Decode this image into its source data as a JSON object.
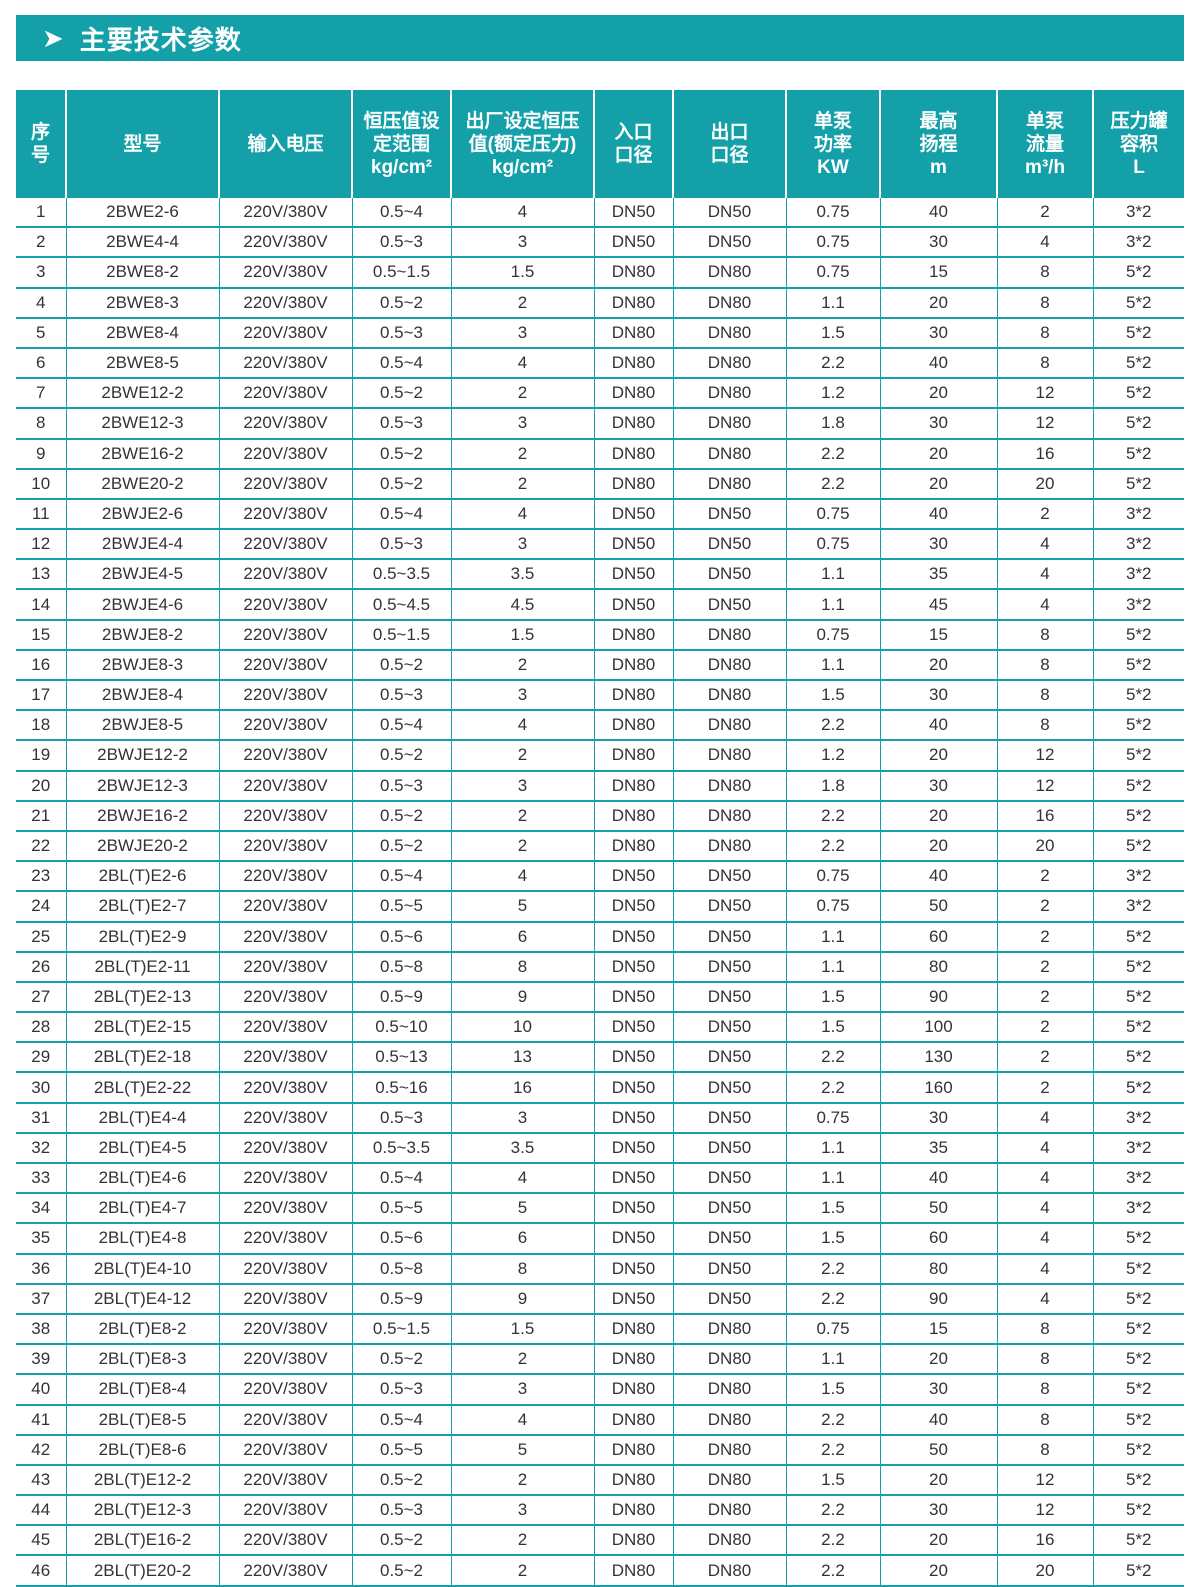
{
  "section": {
    "title": "主要技术参数",
    "icon": "chevron-right-icon"
  },
  "accent_color": "#14a0a8",
  "table": {
    "headers": [
      [
        "序",
        "号"
      ],
      [
        "型号"
      ],
      [
        "输入电压"
      ],
      [
        "恒压值设",
        "定范围",
        "kg/cm²"
      ],
      [
        "出厂设定恒压",
        "值(额定压力)",
        "kg/cm²"
      ],
      [
        "入口",
        "口径"
      ],
      [
        "出口",
        "口径"
      ],
      [
        "单泵",
        "功率",
        "KW"
      ],
      [
        "最高",
        "扬程",
        "m"
      ],
      [
        "单泵",
        "流量",
        "m³/h"
      ],
      [
        "压力罐",
        "容积",
        "L"
      ]
    ],
    "rows": [
      [
        "1",
        "2BWE2-6",
        "220V/380V",
        "0.5~4",
        "4",
        "DN50",
        "DN50",
        "0.75",
        "40",
        "2",
        "3*2"
      ],
      [
        "2",
        "2BWE4-4",
        "220V/380V",
        "0.5~3",
        "3",
        "DN50",
        "DN50",
        "0.75",
        "30",
        "4",
        "3*2"
      ],
      [
        "3",
        "2BWE8-2",
        "220V/380V",
        "0.5~1.5",
        "1.5",
        "DN80",
        "DN80",
        "0.75",
        "15",
        "8",
        "5*2"
      ],
      [
        "4",
        "2BWE8-3",
        "220V/380V",
        "0.5~2",
        "2",
        "DN80",
        "DN80",
        "1.1",
        "20",
        "8",
        "5*2"
      ],
      [
        "5",
        "2BWE8-4",
        "220V/380V",
        "0.5~3",
        "3",
        "DN80",
        "DN80",
        "1.5",
        "30",
        "8",
        "5*2"
      ],
      [
        "6",
        "2BWE8-5",
        "220V/380V",
        "0.5~4",
        "4",
        "DN80",
        "DN80",
        "2.2",
        "40",
        "8",
        "5*2"
      ],
      [
        "7",
        "2BWE12-2",
        "220V/380V",
        "0.5~2",
        "2",
        "DN80",
        "DN80",
        "1.2",
        "20",
        "12",
        "5*2"
      ],
      [
        "8",
        "2BWE12-3",
        "220V/380V",
        "0.5~3",
        "3",
        "DN80",
        "DN80",
        "1.8",
        "30",
        "12",
        "5*2"
      ],
      [
        "9",
        "2BWE16-2",
        "220V/380V",
        "0.5~2",
        "2",
        "DN80",
        "DN80",
        "2.2",
        "20",
        "16",
        "5*2"
      ],
      [
        "10",
        "2BWE20-2",
        "220V/380V",
        "0.5~2",
        "2",
        "DN80",
        "DN80",
        "2.2",
        "20",
        "20",
        "5*2"
      ],
      [
        "11",
        "2BWJE2-6",
        "220V/380V",
        "0.5~4",
        "4",
        "DN50",
        "DN50",
        "0.75",
        "40",
        "2",
        "3*2"
      ],
      [
        "12",
        "2BWJE4-4",
        "220V/380V",
        "0.5~3",
        "3",
        "DN50",
        "DN50",
        "0.75",
        "30",
        "4",
        "3*2"
      ],
      [
        "13",
        "2BWJE4-5",
        "220V/380V",
        "0.5~3.5",
        "3.5",
        "DN50",
        "DN50",
        "1.1",
        "35",
        "4",
        "3*2"
      ],
      [
        "14",
        "2BWJE4-6",
        "220V/380V",
        "0.5~4.5",
        "4.5",
        "DN50",
        "DN50",
        "1.1",
        "45",
        "4",
        "3*2"
      ],
      [
        "15",
        "2BWJE8-2",
        "220V/380V",
        "0.5~1.5",
        "1.5",
        "DN80",
        "DN80",
        "0.75",
        "15",
        "8",
        "5*2"
      ],
      [
        "16",
        "2BWJE8-3",
        "220V/380V",
        "0.5~2",
        "2",
        "DN80",
        "DN80",
        "1.1",
        "20",
        "8",
        "5*2"
      ],
      [
        "17",
        "2BWJE8-4",
        "220V/380V",
        "0.5~3",
        "3",
        "DN80",
        "DN80",
        "1.5",
        "30",
        "8",
        "5*2"
      ],
      [
        "18",
        "2BWJE8-5",
        "220V/380V",
        "0.5~4",
        "4",
        "DN80",
        "DN80",
        "2.2",
        "40",
        "8",
        "5*2"
      ],
      [
        "19",
        "2BWJE12-2",
        "220V/380V",
        "0.5~2",
        "2",
        "DN80",
        "DN80",
        "1.2",
        "20",
        "12",
        "5*2"
      ],
      [
        "20",
        "2BWJE12-3",
        "220V/380V",
        "0.5~3",
        "3",
        "DN80",
        "DN80",
        "1.8",
        "30",
        "12",
        "5*2"
      ],
      [
        "21",
        "2BWJE16-2",
        "220V/380V",
        "0.5~2",
        "2",
        "DN80",
        "DN80",
        "2.2",
        "20",
        "16",
        "5*2"
      ],
      [
        "22",
        "2BWJE20-2",
        "220V/380V",
        "0.5~2",
        "2",
        "DN80",
        "DN80",
        "2.2",
        "20",
        "20",
        "5*2"
      ],
      [
        "23",
        "2BL(T)E2-6",
        "220V/380V",
        "0.5~4",
        "4",
        "DN50",
        "DN50",
        "0.75",
        "40",
        "2",
        "3*2"
      ],
      [
        "24",
        "2BL(T)E2-7",
        "220V/380V",
        "0.5~5",
        "5",
        "DN50",
        "DN50",
        "0.75",
        "50",
        "2",
        "3*2"
      ],
      [
        "25",
        "2BL(T)E2-9",
        "220V/380V",
        "0.5~6",
        "6",
        "DN50",
        "DN50",
        "1.1",
        "60",
        "2",
        "5*2"
      ],
      [
        "26",
        "2BL(T)E2-11",
        "220V/380V",
        "0.5~8",
        "8",
        "DN50",
        "DN50",
        "1.1",
        "80",
        "2",
        "5*2"
      ],
      [
        "27",
        "2BL(T)E2-13",
        "220V/380V",
        "0.5~9",
        "9",
        "DN50",
        "DN50",
        "1.5",
        "90",
        "2",
        "5*2"
      ],
      [
        "28",
        "2BL(T)E2-15",
        "220V/380V",
        "0.5~10",
        "10",
        "DN50",
        "DN50",
        "1.5",
        "100",
        "2",
        "5*2"
      ],
      [
        "29",
        "2BL(T)E2-18",
        "220V/380V",
        "0.5~13",
        "13",
        "DN50",
        "DN50",
        "2.2",
        "130",
        "2",
        "5*2"
      ],
      [
        "30",
        "2BL(T)E2-22",
        "220V/380V",
        "0.5~16",
        "16",
        "DN50",
        "DN50",
        "2.2",
        "160",
        "2",
        "5*2"
      ],
      [
        "31",
        "2BL(T)E4-4",
        "220V/380V",
        "0.5~3",
        "3",
        "DN50",
        "DN50",
        "0.75",
        "30",
        "4",
        "3*2"
      ],
      [
        "32",
        "2BL(T)E4-5",
        "220V/380V",
        "0.5~3.5",
        "3.5",
        "DN50",
        "DN50",
        "1.1",
        "35",
        "4",
        "3*2"
      ],
      [
        "33",
        "2BL(T)E4-6",
        "220V/380V",
        "0.5~4",
        "4",
        "DN50",
        "DN50",
        "1.1",
        "40",
        "4",
        "3*2"
      ],
      [
        "34",
        "2BL(T)E4-7",
        "220V/380V",
        "0.5~5",
        "5",
        "DN50",
        "DN50",
        "1.5",
        "50",
        "4",
        "3*2"
      ],
      [
        "35",
        "2BL(T)E4-8",
        "220V/380V",
        "0.5~6",
        "6",
        "DN50",
        "DN50",
        "1.5",
        "60",
        "4",
        "5*2"
      ],
      [
        "36",
        "2BL(T)E4-10",
        "220V/380V",
        "0.5~8",
        "8",
        "DN50",
        "DN50",
        "2.2",
        "80",
        "4",
        "5*2"
      ],
      [
        "37",
        "2BL(T)E4-12",
        "220V/380V",
        "0.5~9",
        "9",
        "DN50",
        "DN50",
        "2.2",
        "90",
        "4",
        "5*2"
      ],
      [
        "38",
        "2BL(T)E8-2",
        "220V/380V",
        "0.5~1.5",
        "1.5",
        "DN80",
        "DN80",
        "0.75",
        "15",
        "8",
        "5*2"
      ],
      [
        "39",
        "2BL(T)E8-3",
        "220V/380V",
        "0.5~2",
        "2",
        "DN80",
        "DN80",
        "1.1",
        "20",
        "8",
        "5*2"
      ],
      [
        "40",
        "2BL(T)E8-4",
        "220V/380V",
        "0.5~3",
        "3",
        "DN80",
        "DN80",
        "1.5",
        "30",
        "8",
        "5*2"
      ],
      [
        "41",
        "2BL(T)E8-5",
        "220V/380V",
        "0.5~4",
        "4",
        "DN80",
        "DN80",
        "2.2",
        "40",
        "8",
        "5*2"
      ],
      [
        "42",
        "2BL(T)E8-6",
        "220V/380V",
        "0.5~5",
        "5",
        "DN80",
        "DN80",
        "2.2",
        "50",
        "8",
        "5*2"
      ],
      [
        "43",
        "2BL(T)E12-2",
        "220V/380V",
        "0.5~2",
        "2",
        "DN80",
        "DN80",
        "1.5",
        "20",
        "12",
        "5*2"
      ],
      [
        "44",
        "2BL(T)E12-3",
        "220V/380V",
        "0.5~3",
        "3",
        "DN80",
        "DN80",
        "2.2",
        "30",
        "12",
        "5*2"
      ],
      [
        "45",
        "2BL(T)E16-2",
        "220V/380V",
        "0.5~2",
        "2",
        "DN80",
        "DN80",
        "2.2",
        "20",
        "16",
        "5*2"
      ],
      [
        "46",
        "2BL(T)E20-2",
        "220V/380V",
        "0.5~2",
        "2",
        "DN80",
        "DN80",
        "2.2",
        "20",
        "20",
        "5*2"
      ]
    ]
  }
}
